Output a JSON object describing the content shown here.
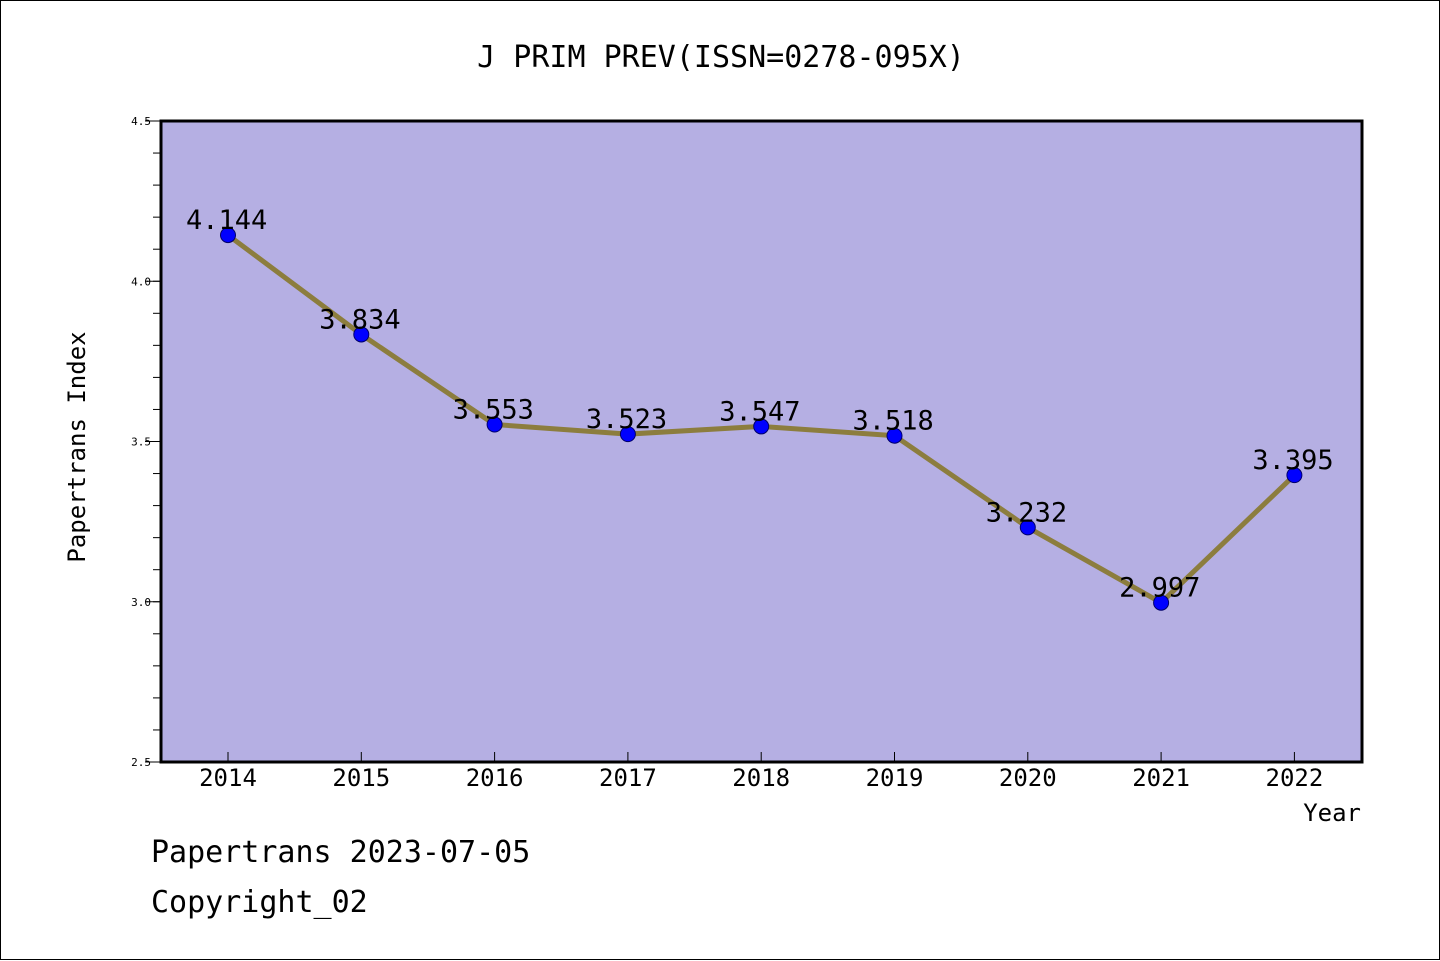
{
  "chart_data": {
    "type": "line",
    "title": "J PRIM PREV(ISSN=0278-095X)",
    "xlabel": "Year",
    "ylabel": "Papertrans Index",
    "categories": [
      "2014",
      "2015",
      "2016",
      "2017",
      "2018",
      "2019",
      "2020",
      "2021",
      "2022"
    ],
    "values": [
      4.144,
      3.834,
      3.553,
      3.523,
      3.547,
      3.518,
      3.232,
      2.997,
      3.395
    ],
    "data_labels": [
      "4.144",
      "3.834",
      "3.553",
      "3.523",
      "3.547",
      "3.518",
      "3.232",
      "2.997",
      "3.395"
    ],
    "ylim": [
      2.5,
      4.5
    ],
    "yticks": [
      "2.5",
      "3.0",
      "3.5",
      "4.0",
      "4.5"
    ],
    "grid": false,
    "plot_background": "#b5afe3",
    "line_color": "#8c7d3e",
    "marker_color": "#0000ff"
  },
  "footer": {
    "date_line": "Papertrans 2023-07-05",
    "copyright": "Copyright_02"
  }
}
